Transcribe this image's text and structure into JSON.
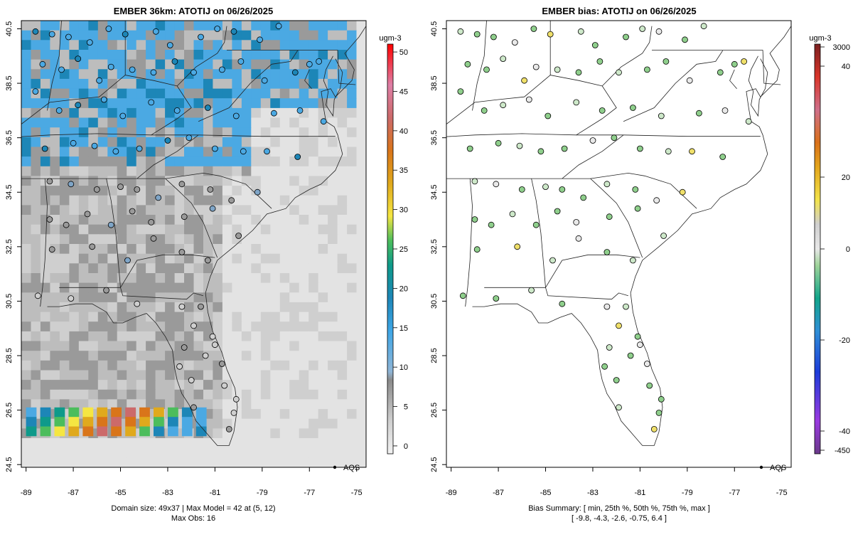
{
  "left_panel": {
    "title": "EMBER 36km: ATOTIJ on 06/26/2025",
    "caption_line1": "Domain size: 49x37 | Max Model = 42 at (5, 12)",
    "caption_line2": "Max Obs: 16",
    "legend_marker_label": "AQS",
    "colorbar": {
      "unit": "ugm-3",
      "tick_labels": [
        "0",
        "5",
        "10",
        "15",
        "20",
        "25",
        "30",
        "35",
        "40",
        "45",
        "50"
      ],
      "tick_values": [
        0,
        5,
        10,
        15,
        20,
        25,
        30,
        35,
        40,
        45,
        50
      ],
      "range": [
        -1,
        51
      ]
    }
  },
  "right_panel": {
    "title": "EMBER bias: ATOTIJ on 06/26/2025",
    "caption_line1": "Bias Summary: [ min, 25th %, 50th %, 75th %, max ]",
    "caption_line2": "[ -9.8,   -4.3,   -2.6,   -0.75,   6.4 ]",
    "legend_marker_label": "AQS",
    "colorbar": {
      "unit": "ugm-3",
      "tick_labels": [
        "3000",
        "40",
        "20",
        "0",
        "-20",
        "-40",
        "-450"
      ],
      "tick_values": [
        3000,
        40,
        20,
        0,
        -20,
        -40,
        -450
      ]
    }
  },
  "axes": {
    "x_ticks": [
      "-89",
      "-87",
      "-85",
      "-83",
      "-81",
      "-79",
      "-77",
      "-75"
    ],
    "y_ticks": [
      "24.5",
      "26.5",
      "28.5",
      "30.5",
      "32.5",
      "34.5",
      "36.5",
      "38.5",
      "40.5"
    ],
    "x_range": [
      -89.2,
      -74.6
    ],
    "y_range": [
      24.4,
      40.8
    ]
  },
  "colors": {
    "light_gray": "#e3e3e3",
    "mid_gray": "#bdbdbd",
    "dark_gray": "#9a9a9a",
    "blue": "#4ba9e3",
    "dark_teal": "#1d86b7",
    "green": "#8fcf8c",
    "light_green": "#cde8c9"
  }
}
